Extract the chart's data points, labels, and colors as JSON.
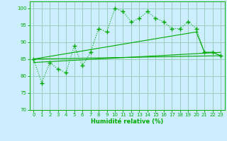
{
  "background_color": "#cceeff",
  "grid_color": "#99ccbb",
  "line_color": "#00aa00",
  "xlabel": "Humidité relative (%)",
  "ylim": [
    70,
    102
  ],
  "xlim": [
    -0.5,
    23.5
  ],
  "yticks": [
    70,
    75,
    80,
    85,
    90,
    95,
    100
  ],
  "xticks": [
    0,
    1,
    2,
    3,
    4,
    5,
    6,
    7,
    8,
    9,
    10,
    11,
    12,
    13,
    14,
    15,
    16,
    17,
    18,
    19,
    20,
    21,
    22,
    23
  ],
  "series1_x": [
    0,
    1,
    2,
    3,
    4,
    5,
    6,
    7,
    8,
    9,
    10,
    11,
    12,
    13,
    14,
    15,
    16,
    17,
    18,
    19,
    20,
    21,
    22,
    23
  ],
  "series1_y": [
    85,
    78,
    84,
    82,
    81,
    89,
    83,
    87,
    94,
    93,
    100,
    99,
    96,
    97,
    99,
    97,
    96,
    94,
    94,
    96,
    94,
    87,
    87,
    86
  ],
  "series2_x": [
    0,
    23
  ],
  "series2_y": [
    85,
    86
  ],
  "series3_x": [
    0,
    20,
    21,
    22,
    23
  ],
  "series3_y": [
    85,
    93,
    87,
    87,
    86
  ],
  "series4_x": [
    0,
    23
  ],
  "series4_y": [
    84,
    87
  ]
}
